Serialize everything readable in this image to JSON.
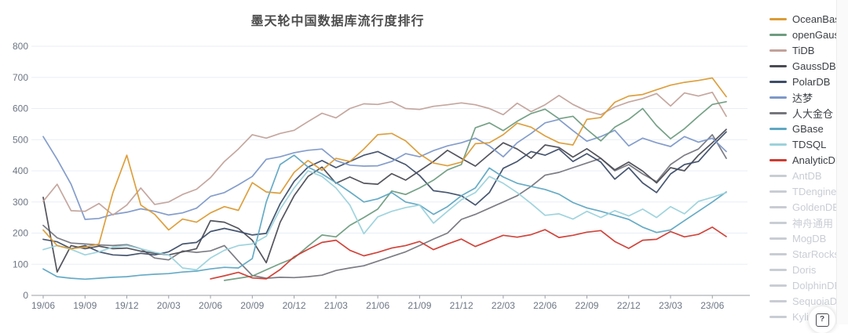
{
  "title": "墨天轮中国数据库流行度排行",
  "help_button": {
    "icon": "?"
  },
  "colors": {
    "grid": "#e8eef5",
    "axis": "#9b9fa6",
    "tick_label": "#6d7685",
    "legend_inactive": "#c9cdd4"
  },
  "chart_data": {
    "type": "line",
    "title": "墨天轮中国数据库流行度排行",
    "x_monthly_start": "19/06",
    "x_monthly_end": "23/07",
    "months_count": 50,
    "x_tick_labels": [
      "19/06",
      "19/09",
      "19/12",
      "20/03",
      "20/06",
      "20/09",
      "20/12",
      "21/03",
      "21/06",
      "21/09",
      "21/12",
      "22/03",
      "22/06",
      "22/09",
      "22/12",
      "23/03",
      "23/06"
    ],
    "tick_every_months": 3,
    "ylim": [
      0,
      800
    ],
    "y_tick_labels": [
      "0",
      "100",
      "200",
      "300",
      "400",
      "500",
      "600",
      "700",
      "800"
    ],
    "grid": "on",
    "legend_position": "right",
    "series": [
      {
        "name": "OceanBase",
        "color": "#db9b35",
        "start": 0,
        "values": [
          210,
          160,
          150,
          155,
          165,
          330,
          450,
          290,
          260,
          210,
          245,
          235,
          265,
          285,
          273,
          362,
          332,
          328,
          395,
          433,
          402,
          440,
          430,
          470,
          516,
          520,
          496,
          454,
          425,
          416,
          428,
          487,
          490,
          516,
          553,
          540,
          512,
          490,
          483,
          565,
          571,
          620,
          640,
          645,
          660,
          675,
          684,
          690,
          698,
          638
        ]
      },
      {
        "name": "openGauss",
        "color": "#6e9c80",
        "start": 13,
        "values": [
          48,
          55,
          62,
          82,
          102,
          120,
          158,
          194,
          188,
          225,
          250,
          277,
          335,
          324,
          345,
          370,
          403,
          420,
          538,
          554,
          529,
          559,
          584,
          598,
          567,
          575,
          533,
          496,
          540,
          565,
          600,
          545,
          503,
          535,
          575,
          613,
          622
        ]
      },
      {
        "name": "TiDB",
        "color": "#c2a29a",
        "start": 0,
        "values": [
          302,
          357,
          272,
          270,
          295,
          258,
          290,
          345,
          292,
          300,
          324,
          341,
          378,
          430,
          470,
          516,
          505,
          520,
          530,
          558,
          585,
          570,
          600,
          615,
          613,
          622,
          600,
          597,
          607,
          612,
          618,
          612,
          600,
          580,
          617,
          590,
          612,
          642,
          613,
          592,
          580,
          605,
          621,
          632,
          648,
          608,
          650,
          640,
          652,
          575
        ]
      },
      {
        "name": "GaussDB",
        "color": "#4b4b54",
        "start": 0,
        "values": [
          315,
          75,
          160,
          150,
          158,
          150,
          152,
          142,
          135,
          130,
          140,
          150,
          240,
          235,
          215,
          177,
          105,
          235,
          320,
          382,
          412,
          360,
          380,
          360,
          357,
          391,
          370,
          400,
          430,
          466,
          440,
          415,
          453,
          490,
          470,
          440,
          483,
          475,
          444,
          471,
          440,
          403,
          428,
          399,
          361,
          410,
          400,
          450,
          490,
          533
        ]
      },
      {
        "name": "PolarDB",
        "color": "#3d4d68",
        "start": 0,
        "values": [
          180,
          172,
          150,
          160,
          140,
          130,
          128,
          135,
          130,
          140,
          165,
          170,
          205,
          215,
          205,
          194,
          199,
          294,
          366,
          412,
          433,
          410,
          430,
          450,
          462,
          440,
          420,
          385,
          336,
          330,
          320,
          290,
          330,
          408,
          430,
          462,
          450,
          470,
          430,
          455,
          428,
          373,
          410,
          361,
          330,
          390,
          420,
          430,
          480,
          525
        ]
      },
      {
        "name": "达梦",
        "color": "#7d98c8",
        "start": 0,
        "values": [
          510,
          437,
          357,
          244,
          247,
          260,
          267,
          278,
          270,
          258,
          265,
          280,
          318,
          330,
          355,
          382,
          437,
          445,
          458,
          466,
          470,
          433,
          418,
          415,
          416,
          430,
          455,
          445,
          465,
          480,
          490,
          505,
          480,
          445,
          490,
          520,
          554,
          565,
          529,
          495,
          510,
          530,
          480,
          505,
          490,
          478,
          510,
          492,
          505,
          462
        ]
      },
      {
        "name": "人大金仓",
        "color": "#75757d",
        "start": 0,
        "values": [
          225,
          185,
          168,
          165,
          162,
          160,
          163,
          150,
          120,
          114,
          143,
          138,
          143,
          160,
          110,
          64,
          55,
          58,
          57,
          60,
          65,
          80,
          88,
          95,
          110,
          125,
          140,
          160,
          181,
          200,
          244,
          260,
          280,
          300,
          320,
          350,
          386,
          395,
          410,
          425,
          440,
          400,
          420,
          390,
          365,
          420,
          450,
          470,
          516,
          440
        ]
      },
      {
        "name": "GBase",
        "color": "#5ea7c3",
        "start": 0,
        "values": [
          85,
          60,
          55,
          52,
          55,
          58,
          60,
          65,
          68,
          70,
          75,
          78,
          85,
          90,
          88,
          118,
          300,
          420,
          450,
          412,
          390,
          362,
          332,
          300,
          310,
          330,
          300,
          290,
          260,
          285,
          320,
          345,
          409,
          380,
          360,
          350,
          340,
          325,
          298,
          281,
          270,
          257,
          244,
          219,
          202,
          210,
          240,
          270,
          300,
          332
        ]
      },
      {
        "name": "TDSQL",
        "color": "#9bd2dc",
        "start": 0,
        "values": [
          147,
          160,
          148,
          130,
          140,
          155,
          160,
          150,
          138,
          130,
          88,
          82,
          120,
          145,
          160,
          165,
          190,
          277,
          345,
          400,
          382,
          345,
          290,
          198,
          252,
          270,
          282,
          290,
          232,
          270,
          307,
          330,
          382,
          360,
          330,
          295,
          257,
          262,
          245,
          270,
          250,
          272,
          255,
          277,
          250,
          285,
          262,
          302,
          315,
          330
        ]
      },
      {
        "name": "AnalyticDB",
        "color": "#cd3b32",
        "start": 12,
        "values": [
          53,
          63,
          74,
          56,
          53,
          83,
          124,
          148,
          170,
          177,
          145,
          127,
          138,
          152,
          160,
          173,
          147,
          165,
          181,
          157,
          175,
          193,
          187,
          195,
          211,
          186,
          193,
          203,
          208,
          173,
          151,
          177,
          180,
          205,
          188,
          196,
          219,
          189
        ]
      }
    ],
    "legend_inactive": [
      "AntDB",
      "TDengine",
      "GoldenDB",
      "神舟通用",
      "MogDB",
      "StarRocks",
      "Doris",
      "DolphinDB",
      "SequoiaDB",
      "Kylig"
    ]
  }
}
